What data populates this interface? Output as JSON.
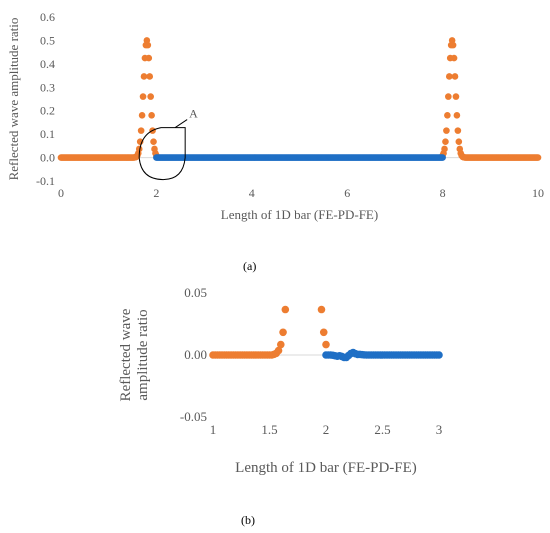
{
  "panel_labels": {
    "a": "(a)",
    "b": "(b)"
  },
  "colors": {
    "orange": "#ED7D31",
    "blue": "#1F6FC5",
    "grid_axis": "#D9D9D9",
    "text": "#595959"
  },
  "chart_data": [
    {
      "type": "scatter",
      "panel": "(a)",
      "title": "",
      "xlabel": "Length of 1D bar (FE-PD-FE)",
      "ylabel": "Reflected wave amplitude ratio",
      "xlim": [
        0,
        10
      ],
      "ylim": [
        -0.1,
        0.6
      ],
      "xticks": [
        0,
        2,
        4,
        6,
        8,
        10
      ],
      "yticks": [
        -0.1,
        0,
        0.1,
        0.2,
        0.3,
        0.4,
        0.5,
        0.6
      ],
      "grid": false,
      "legend": "none",
      "annotation": {
        "text": "A",
        "near_x": 2.1,
        "near_y": 0.0
      },
      "series": [
        {
          "color": "#ED7D31",
          "segments": [
            {
              "x_start": 0,
              "x_end": 2.0,
              "pulse_center": 1.8,
              "pulse_peak": 0.5,
              "pulse_width": 0.07
            },
            {
              "x_start": 8.0,
              "x_end": 10.0,
              "pulse_center": 8.2,
              "pulse_peak": 0.5,
              "pulse_width": 0.07
            }
          ]
        },
        {
          "color": "#1F6FC5",
          "segments": [
            {
              "x_start": 2.0,
              "x_end": 8.0,
              "baseline": 0
            }
          ]
        }
      ]
    },
    {
      "type": "scatter",
      "panel": "(b)",
      "title": "",
      "xlabel": "Length of 1D bar (FE-PD-FE)",
      "ylabel": "Reflected wave amplitude ratio",
      "xlim": [
        1,
        3
      ],
      "ylim": [
        -0.05,
        0.05
      ],
      "xticks": [
        1,
        1.5,
        2,
        2.5,
        3
      ],
      "yticks": [
        -0.05,
        0,
        0.05
      ],
      "grid": false,
      "legend": "none",
      "series": [
        {
          "color": "#ED7D31",
          "segments": [
            {
              "x_start": 1.0,
              "x_end": 2.0,
              "pulse_center": 1.8,
              "pulse_peak": 0.5,
              "pulse_width": 0.07
            }
          ]
        },
        {
          "color": "#1F6FC5",
          "segments": [
            {
              "x_start": 2.0,
              "x_end": 3.0,
              "baseline": 0,
              "ripple_points": [
                [
                  2.1,
                  -0.001
                ],
                [
                  2.17,
                  -0.0025
                ],
                [
                  2.24,
                  0.002
                ],
                [
                  2.3,
                  0.0005
                ]
              ]
            }
          ]
        }
      ]
    }
  ]
}
